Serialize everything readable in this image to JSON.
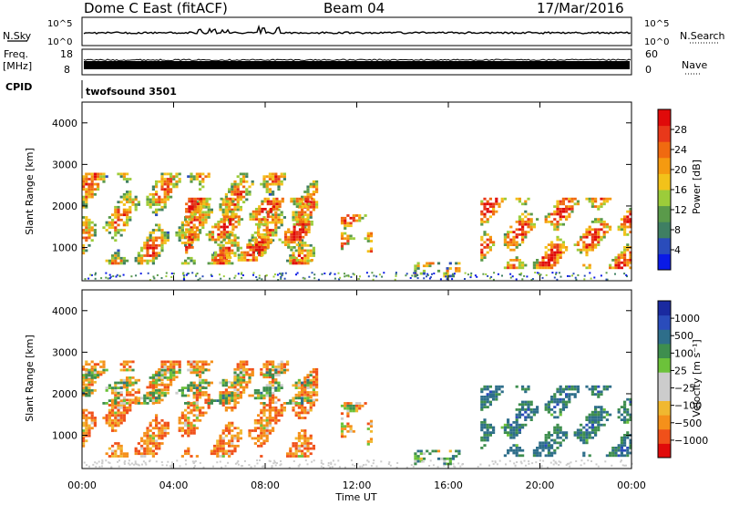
{
  "header": {
    "station": "Dome C East (fitACF)",
    "beam": "Beam 04",
    "date": "17/Mar/2016"
  },
  "status_strips": {
    "nsky": {
      "left_label": "N.Sky",
      "left_ticks": [
        "10^5",
        "10^0"
      ],
      "right_label": "N.Search",
      "right_ticks": [
        "10^5",
        "10^0"
      ]
    },
    "freq": {
      "left_label_1": "Freq.",
      "left_label_2": "[MHz]",
      "left_ticks": [
        "18",
        "8"
      ],
      "right_label": "Nave",
      "right_ticks": [
        "60",
        "0"
      ]
    },
    "cpid": {
      "label": "CPID",
      "value": "twofsound 3501"
    }
  },
  "colors": {
    "power_scale": [
      "#0a1ae6",
      "#2a4cbb",
      "#3f7f63",
      "#5a9a4a",
      "#9ccc3a",
      "#f2c21a",
      "#f59a10",
      "#f06a10",
      "#e8381a",
      "#e00a0a"
    ],
    "velocity_scale": [
      "#e00a0a",
      "#f0501a",
      "#f5901a",
      "#f0b830",
      "#cccccc",
      "#cccccc",
      "#6cc23a",
      "#3e8e4e",
      "#2e6e8a",
      "#2a4cbb",
      "#1a2aa0"
    ]
  },
  "chart_data": [
    {
      "type": "heatmap",
      "panel": "power",
      "ylabel": "Slant Range [km]",
      "ylim": [
        200,
        4500
      ],
      "y_ticks": [
        "1000",
        "2000",
        "3000",
        "4000"
      ],
      "xlim": [
        0,
        24
      ],
      "colorbar": {
        "label": "Power [dB]",
        "range": [
          0,
          32
        ],
        "ticks": [
          "4",
          "8",
          "12",
          "16",
          "20",
          "24",
          "28"
        ]
      },
      "echo_regions": [
        {
          "t_start": 0.0,
          "t_end": 10.2,
          "r_start": 600,
          "r_end": 2800,
          "level": 0.55
        },
        {
          "t_start": 4.5,
          "t_end": 10.0,
          "r_start": 700,
          "r_end": 2200,
          "level": 0.8
        },
        {
          "t_start": 11.3,
          "t_end": 12.7,
          "r_start": 900,
          "r_end": 1800,
          "level": 0.7
        },
        {
          "t_start": 14.5,
          "t_end": 16.5,
          "r_start": 300,
          "r_end": 650,
          "level": 0.4
        },
        {
          "t_start": 17.4,
          "t_end": 24.0,
          "r_start": 500,
          "r_end": 2200,
          "level": 0.75
        }
      ]
    },
    {
      "type": "heatmap",
      "panel": "velocity",
      "ylabel": "Slant Range [km]",
      "ylim": [
        200,
        4500
      ],
      "y_ticks": [
        "1000",
        "2000",
        "3000",
        "4000"
      ],
      "xlim": [
        0,
        24
      ],
      "x_ticks": [
        "00:00",
        "04:00",
        "08:00",
        "12:00",
        "16:00",
        "20:00",
        "00:00"
      ],
      "xlabel": "Time UT",
      "colorbar": {
        "label": "Velocity [m s⁻¹]",
        "ticks": [
          "1000",
          "500",
          "100",
          "25",
          "−25",
          "−100",
          "−500",
          "−1000"
        ]
      },
      "echo_regions": [
        {
          "t_start": 0.0,
          "t_end": 10.2,
          "r_start": 500,
          "r_end": 2800,
          "velocity": -300
        },
        {
          "t_start": 0.0,
          "t_end": 10.0,
          "r_start": 1800,
          "r_end": 2600,
          "velocity": 0
        },
        {
          "t_start": 11.3,
          "t_end": 12.7,
          "r_start": 800,
          "r_end": 1800,
          "velocity": -200
        },
        {
          "t_start": 14.5,
          "t_end": 16.5,
          "r_start": 300,
          "r_end": 650,
          "velocity": 100
        },
        {
          "t_start": 17.4,
          "t_end": 24.0,
          "r_start": 500,
          "r_end": 2200,
          "velocity": 300
        }
      ]
    }
  ]
}
